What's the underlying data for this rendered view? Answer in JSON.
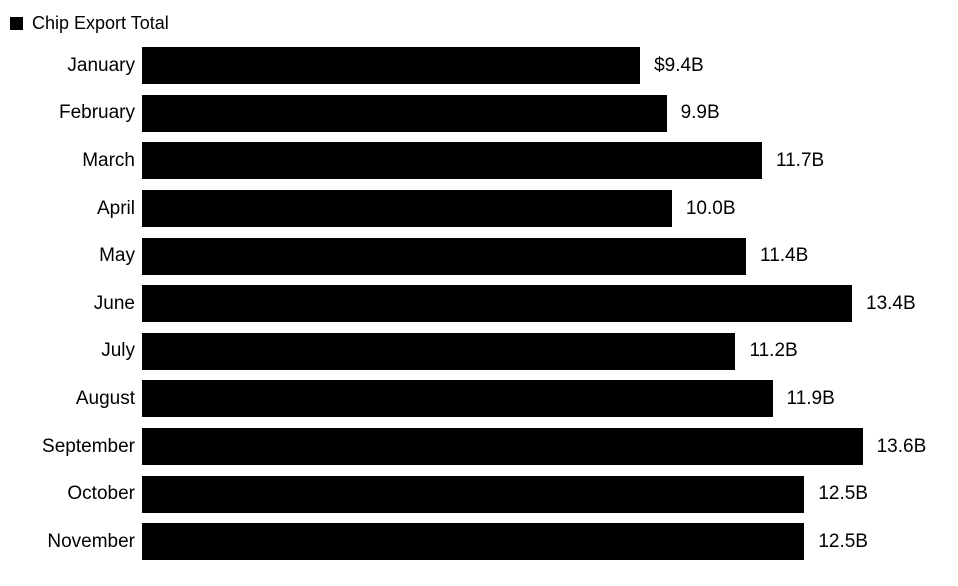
{
  "legend": {
    "label": "Chip Export Total",
    "swatch_color": "#000000"
  },
  "chart_data": {
    "type": "bar",
    "orientation": "horizontal",
    "title": "",
    "xlabel": "",
    "ylabel": "",
    "categories": [
      "January",
      "February",
      "March",
      "April",
      "May",
      "June",
      "July",
      "August",
      "September",
      "October",
      "November"
    ],
    "values": [
      9.4,
      9.9,
      11.7,
      10.0,
      11.4,
      13.4,
      11.2,
      11.9,
      13.6,
      12.5,
      12.5
    ],
    "value_labels": [
      "$9.4B",
      "9.9B",
      "11.7B",
      "10.0B",
      "11.4B",
      "13.4B",
      "11.2B",
      "11.9B",
      "13.6B",
      "12.5B",
      "12.5B"
    ],
    "value_unit": "USD billions",
    "xlim": [
      0,
      15.4
    ],
    "grid": false,
    "legend_position": "top-left",
    "bar_color": "#000000",
    "background_color": "#ffffff",
    "text_color": "#000000"
  }
}
